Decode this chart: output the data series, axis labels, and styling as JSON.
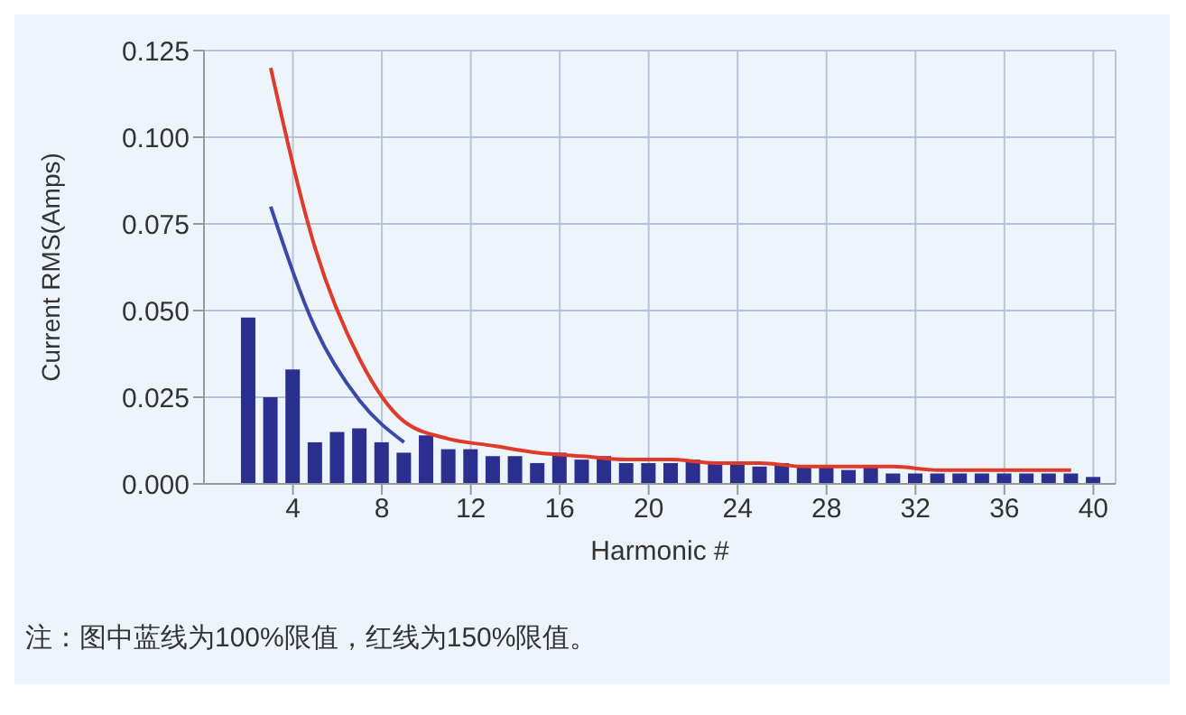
{
  "chart_data": {
    "type": "bar",
    "xlabel": "Harmonic #",
    "ylabel": "Current RMS(Amps)",
    "x": [
      2,
      3,
      4,
      5,
      6,
      7,
      8,
      9,
      10,
      11,
      12,
      13,
      14,
      15,
      16,
      17,
      18,
      19,
      20,
      21,
      22,
      23,
      24,
      25,
      26,
      27,
      28,
      29,
      30,
      31,
      32,
      33,
      34,
      35,
      36,
      37,
      38,
      39,
      40
    ],
    "series": [
      {
        "color": "#2b2f8f",
        "values": [
          0.048,
          0.025,
          0.033,
          0.012,
          0.015,
          0.016,
          0.012,
          0.009,
          0.014,
          0.01,
          0.01,
          0.008,
          0.008,
          0.006,
          0.009,
          0.007,
          0.008,
          0.006,
          0.006,
          0.006,
          0.007,
          0.006,
          0.006,
          0.005,
          0.006,
          0.005,
          0.005,
          0.004,
          0.005,
          0.003,
          0.003,
          0.003,
          0.003,
          0.003,
          0.003,
          0.003,
          0.003,
          0.003,
          0.002
        ]
      },
      {
        "type": "line",
        "color": "#e03a2a",
        "x": [
          3,
          5,
          7,
          9,
          11,
          13,
          15,
          17,
          19,
          21,
          23,
          25,
          27,
          29,
          31,
          33,
          35,
          37,
          39
        ],
        "values": [
          0.12,
          0.068,
          0.036,
          0.018,
          0.013,
          0.011,
          0.009,
          0.008,
          0.007,
          0.007,
          0.006,
          0.006,
          0.005,
          0.005,
          0.005,
          0.004,
          0.004,
          0.004,
          0.004
        ]
      },
      {
        "type": "line",
        "color": "#3a4aa8",
        "x": [
          3,
          5,
          7,
          9
        ],
        "values": [
          0.08,
          0.045,
          0.024,
          0.012
        ]
      }
    ],
    "xlim": [
      0,
      41
    ],
    "xticks": [
      4,
      8,
      12,
      16,
      20,
      24,
      28,
      32,
      36,
      40
    ],
    "ylim": [
      0,
      0.125
    ],
    "yticks": [
      {
        "value": 0,
        "label": "0.000"
      },
      {
        "value": 0.025,
        "label": "0.025"
      },
      {
        "value": 0.05,
        "label": "0.050"
      },
      {
        "value": 0.075,
        "label": "0.075"
      },
      {
        "value": 0.1,
        "label": "0.100"
      },
      {
        "value": 0.125,
        "label": "0.125"
      }
    ],
    "grid": true,
    "marker": "none",
    "line_style": "solid",
    "annotations": [
      "注：图中蓝线为100%限值，红线为150%限值。"
    ]
  }
}
